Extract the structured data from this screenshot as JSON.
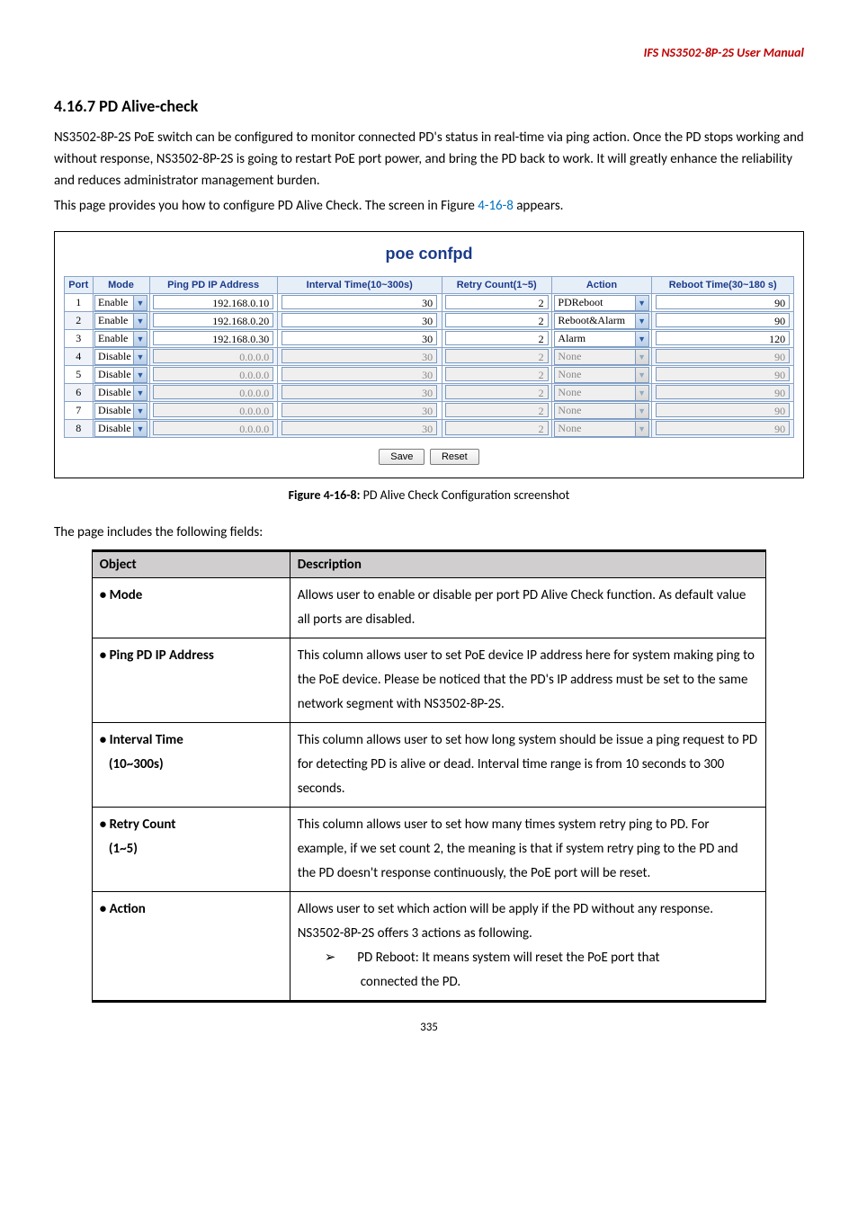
{
  "header": {
    "manual_title": "IFS  NS3502-8P-2S  User Manual"
  },
  "section": {
    "heading": "4.16.7 PD Alive-check",
    "para1": "NS3502-8P-2S PoE switch can be configured to monitor connected PD's status in real-time via ping action. Once the PD stops working and without response, NS3502-8P-2S is going to restart PoE port power, and bring the PD back to work. It will greatly enhance the reliability and reduces administrator management burden.",
    "para2a": "This page provides you how to configure PD Alive Check. The screen in Figure ",
    "para2_link": "4-16-8",
    "para2b": " appears."
  },
  "figure": {
    "title": "poe confpd",
    "headers": [
      "Port",
      "Mode",
      "Ping PD IP Address",
      "Interval Time(10~300s)",
      "Retry Count(1~5)",
      "Action",
      "Reboot Time(30~180 s)"
    ],
    "rows": [
      {
        "port": "1",
        "mode": "Enable",
        "ip": "192.168.0.10",
        "interval": "30",
        "retry": "2",
        "action": "PDReboot",
        "reboot": "90",
        "enabled": true
      },
      {
        "port": "2",
        "mode": "Enable",
        "ip": "192.168.0.20",
        "interval": "30",
        "retry": "2",
        "action": "Reboot&Alarm",
        "reboot": "90",
        "enabled": true
      },
      {
        "port": "3",
        "mode": "Enable",
        "ip": "192.168.0.30",
        "interval": "30",
        "retry": "2",
        "action": "Alarm",
        "reboot": "120",
        "enabled": true
      },
      {
        "port": "4",
        "mode": "Disable",
        "ip": "0.0.0.0",
        "interval": "30",
        "retry": "2",
        "action": "None",
        "reboot": "90",
        "enabled": false
      },
      {
        "port": "5",
        "mode": "Disable",
        "ip": "0.0.0.0",
        "interval": "30",
        "retry": "2",
        "action": "None",
        "reboot": "90",
        "enabled": false
      },
      {
        "port": "6",
        "mode": "Disable",
        "ip": "0.0.0.0",
        "interval": "30",
        "retry": "2",
        "action": "None",
        "reboot": "90",
        "enabled": false
      },
      {
        "port": "7",
        "mode": "Disable",
        "ip": "0.0.0.0",
        "interval": "30",
        "retry": "2",
        "action": "None",
        "reboot": "90",
        "enabled": false
      },
      {
        "port": "8",
        "mode": "Disable",
        "ip": "0.0.0.0",
        "interval": "30",
        "retry": "2",
        "action": "None",
        "reboot": "90",
        "enabled": false
      }
    ],
    "save_label": "Save",
    "reset_label": "Reset",
    "caption_bold": "Figure 4-16-8:",
    "caption_rest": " PD Alive Check Configuration screenshot"
  },
  "fields_intro": "The page includes the following fields:",
  "desc_table": {
    "header_object": "Object",
    "header_desc": "Description",
    "rows": [
      {
        "obj": "Mode",
        "desc": "Allows user to enable or disable per port PD Alive Check function. As default value all ports are disabled."
      },
      {
        "obj": "Ping PD IP Address",
        "desc": "This column allows user to set PoE device IP address here for system making ping to the PoE device. Please be noticed that the PD's IP address must be set to the same network segment with NS3502-8P-2S."
      },
      {
        "obj": "Interval Time (10~300s)",
        "desc": "This column allows user to set how long system should be issue a ping request to PD for detecting PD is alive or dead. Interval time range is from 10 seconds to 300 seconds."
      },
      {
        "obj": "Retry Count (1~5)",
        "desc": "This column allows user to set how many times system retry ping to PD. For example, if we set count 2, the meaning is that if system retry ping to the PD and the PD doesn't response continuously, the PoE port will be reset."
      },
      {
        "obj": "Action",
        "desc": "Allows user to set which action will be apply if the PD without any response. NS3502-8P-2S offers 3 actions as following.",
        "sub": "PD Reboot: It means system will reset the PoE port that",
        "sub2": "connected the PD."
      }
    ]
  },
  "page_number": "335"
}
